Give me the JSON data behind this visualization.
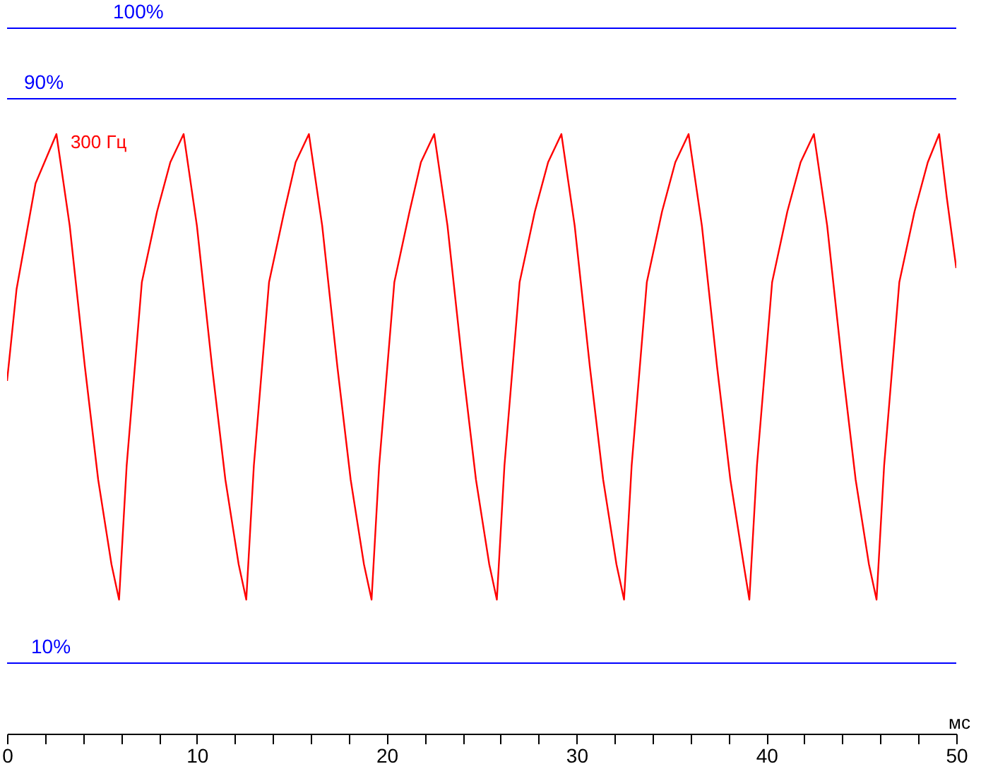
{
  "chart_data": {
    "type": "line",
    "xlabel": "мс",
    "grid": false,
    "tick_labels": "x",
    "line_style": "solid",
    "xlim": [
      0,
      50
    ],
    "ylim": [
      0,
      104
    ],
    "xticks": [
      0,
      {
        "value": 2,
        "label": null
      },
      {
        "value": 4,
        "label": null
      },
      {
        "value": 6,
        "label": null
      },
      {
        "value": 8,
        "label": null
      },
      10,
      {
        "value": 12,
        "label": null
      },
      {
        "value": 14,
        "label": null
      },
      {
        "value": 16,
        "label": null
      },
      {
        "value": 18,
        "label": null
      },
      20,
      {
        "value": 22,
        "label": null
      },
      {
        "value": 24,
        "label": null
      },
      {
        "value": 26,
        "label": null
      },
      {
        "value": 28,
        "label": null
      },
      30,
      {
        "value": 32,
        "label": null
      },
      {
        "value": 34,
        "label": null
      },
      {
        "value": 36,
        "label": null
      },
      {
        "value": 38,
        "label": null
      },
      40,
      {
        "value": 42,
        "label": null
      },
      {
        "value": 44,
        "label": null
      },
      {
        "value": 46,
        "label": null
      },
      {
        "value": 48,
        "label": null
      },
      50
    ],
    "x": [
      0,
      0.5,
      1.5,
      2.6,
      3.3,
      4.1,
      4.8,
      5.5,
      5.9,
      6.3,
      7.1,
      7.9,
      8.6,
      9.3,
      10.0,
      10.8,
      11.5,
      12.2,
      12.6,
      13.0,
      13.8,
      14.6,
      15.2,
      15.9,
      16.6,
      17.4,
      18.1,
      18.8,
      19.2,
      19.6,
      20.4,
      21.2,
      21.8,
      22.5,
      23.2,
      24.0,
      24.7,
      25.4,
      25.8,
      26.2,
      27.0,
      27.8,
      28.5,
      29.2,
      29.9,
      30.7,
      31.4,
      32.1,
      32.5,
      32.9,
      33.7,
      34.5,
      35.2,
      35.9,
      36.6,
      37.4,
      38.1,
      38.8,
      39.1,
      39.5,
      40.3,
      41.1,
      41.8,
      42.5,
      43.2,
      44.0,
      44.7,
      45.4,
      45.8,
      46.2,
      47.0,
      47.8,
      48.5,
      49.1,
      49.5,
      50
    ],
    "series": [
      {
        "name": "300 Гц",
        "color": "#ff0000",
        "values": [
          50,
          63,
          78,
          85,
          72,
          52,
          36,
          24,
          19,
          38,
          64,
          74,
          81,
          85,
          72,
          52,
          36,
          24,
          19,
          38,
          64,
          74,
          81,
          85,
          72,
          52,
          36,
          24,
          19,
          38,
          64,
          74,
          81,
          85,
          72,
          52,
          36,
          24,
          19,
          38,
          64,
          74,
          81,
          85,
          72,
          52,
          36,
          24,
          19,
          38,
          64,
          74,
          81,
          85,
          72,
          52,
          36,
          24,
          19,
          38,
          64,
          74,
          81,
          85,
          72,
          52,
          36,
          24,
          19,
          38,
          64,
          74,
          81,
          85,
          76,
          66
        ]
      }
    ],
    "ref_lines": [
      {
        "axis": "y",
        "value": 100,
        "label": "100%",
        "color": "#0000ff"
      },
      {
        "axis": "y",
        "value": 90,
        "label": "90%",
        "color": "#0000ff"
      },
      {
        "axis": "y",
        "value": 10,
        "label": "10%",
        "color": "#0000ff"
      }
    ]
  }
}
